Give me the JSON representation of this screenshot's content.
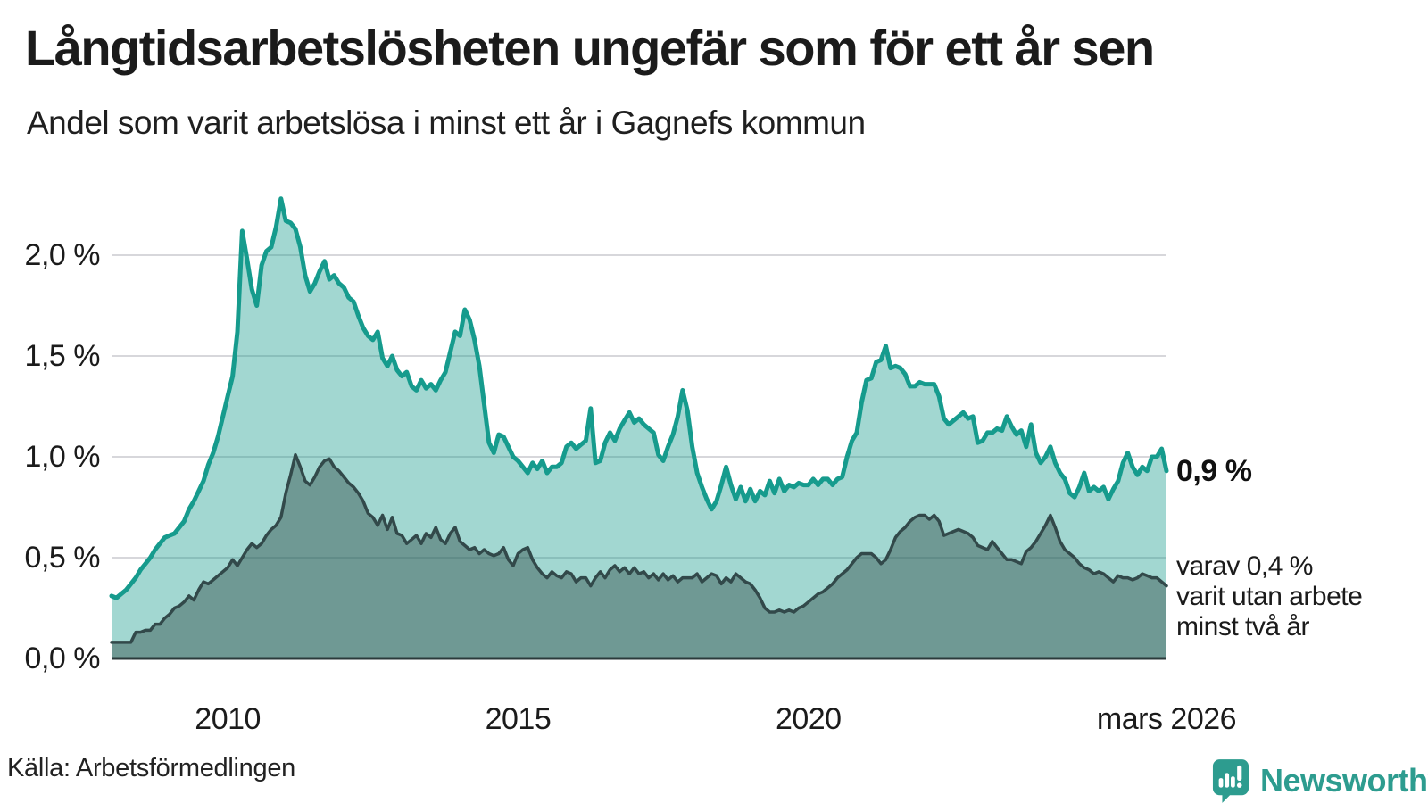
{
  "title": "Långtidsarbetslösheten ungefär som för ett år sen",
  "subtitle": "Andel som varit arbetslösa i minst ett år i Gagnefs kommun",
  "source": "Källa: Arbetsförmedlingen",
  "logo": {
    "text": "Newsworthy",
    "color": "#2d9c8f"
  },
  "annotations": {
    "latest_total": "0,9 %",
    "latest_two_year_line1": "varav 0,4 %",
    "latest_two_year_line2": "varit utan arbete",
    "latest_two_year_line3": "minst två år"
  },
  "chart_data": {
    "type": "area",
    "x_start": "2008-01",
    "x_end": "2026-03",
    "x_unit": "month",
    "ylim": [
      0,
      2.35
    ],
    "grid": true,
    "gridline_values": [
      0.5,
      1.0,
      1.5,
      2.0
    ],
    "y_axis": {
      "labels": [
        "2,0 %",
        "1,5 %",
        "1,0 %",
        "0,5 %",
        "0,0 %"
      ],
      "values": [
        2.0,
        1.5,
        1.0,
        0.5,
        0.0
      ]
    },
    "x_ticks": [
      {
        "label": "2010",
        "month_index": 24
      },
      {
        "label": "2015",
        "month_index": 84
      },
      {
        "label": "2020",
        "month_index": 144
      },
      {
        "label": "mars 2026",
        "month_index": 218
      }
    ],
    "colors": {
      "total_line": "#169b8d",
      "total_fill": "#169b8d",
      "two_year_line": "#32494a",
      "two_year_fill": "#2e4a47",
      "gridline": "#d7d7db",
      "baseline": "#2b3a3b"
    },
    "series": [
      {
        "name": "Arbetslösa minst ett år (andel, %)",
        "values": [
          0.31,
          0.3,
          0.32,
          0.34,
          0.37,
          0.4,
          0.44,
          0.47,
          0.5,
          0.54,
          0.57,
          0.6,
          0.61,
          0.62,
          0.65,
          0.68,
          0.74,
          0.78,
          0.83,
          0.88,
          0.96,
          1.02,
          1.1,
          1.2,
          1.3,
          1.4,
          1.62,
          2.12,
          1.98,
          1.83,
          1.75,
          1.95,
          2.02,
          2.04,
          2.14,
          2.28,
          2.17,
          2.16,
          2.13,
          2.04,
          1.9,
          1.82,
          1.86,
          1.92,
          1.97,
          1.88,
          1.9,
          1.86,
          1.84,
          1.79,
          1.77,
          1.7,
          1.64,
          1.6,
          1.58,
          1.62,
          1.49,
          1.45,
          1.5,
          1.43,
          1.4,
          1.42,
          1.35,
          1.33,
          1.38,
          1.34,
          1.36,
          1.33,
          1.38,
          1.42,
          1.52,
          1.62,
          1.6,
          1.73,
          1.68,
          1.58,
          1.45,
          1.26,
          1.07,
          1.02,
          1.11,
          1.1,
          1.05,
          1.0,
          0.98,
          0.95,
          0.92,
          0.97,
          0.94,
          0.98,
          0.92,
          0.95,
          0.95,
          0.97,
          1.05,
          1.07,
          1.04,
          1.06,
          1.08,
          1.24,
          0.97,
          0.98,
          1.07,
          1.12,
          1.08,
          1.14,
          1.18,
          1.22,
          1.17,
          1.19,
          1.16,
          1.14,
          1.12,
          1.01,
          0.98,
          1.05,
          1.11,
          1.2,
          1.33,
          1.23,
          1.05,
          0.92,
          0.85,
          0.79,
          0.74,
          0.78,
          0.86,
          0.95,
          0.86,
          0.79,
          0.85,
          0.78,
          0.84,
          0.78,
          0.83,
          0.81,
          0.88,
          0.82,
          0.89,
          0.83,
          0.86,
          0.85,
          0.87,
          0.86,
          0.86,
          0.89,
          0.86,
          0.89,
          0.89,
          0.86,
          0.89,
          0.9,
          1.0,
          1.08,
          1.12,
          1.27,
          1.38,
          1.39,
          1.47,
          1.48,
          1.55,
          1.44,
          1.45,
          1.44,
          1.41,
          1.35,
          1.35,
          1.37,
          1.36,
          1.36,
          1.36,
          1.3,
          1.19,
          1.16,
          1.18,
          1.2,
          1.22,
          1.19,
          1.2,
          1.07,
          1.08,
          1.12,
          1.12,
          1.14,
          1.13,
          1.2,
          1.15,
          1.11,
          1.13,
          1.05,
          1.16,
          1.02,
          0.97,
          1.0,
          1.05,
          0.97,
          0.92,
          0.89,
          0.82,
          0.8,
          0.85,
          0.92,
          0.83,
          0.85,
          0.83,
          0.85,
          0.79,
          0.84,
          0.88,
          0.97,
          1.02,
          0.95,
          0.91,
          0.95,
          0.93,
          1.0,
          1.0,
          1.04,
          0.93
        ]
      },
      {
        "name": "Varav utan arbete minst två år (andel, %)",
        "values": [
          0.08,
          0.08,
          0.08,
          0.08,
          0.08,
          0.13,
          0.13,
          0.14,
          0.14,
          0.17,
          0.17,
          0.2,
          0.22,
          0.25,
          0.26,
          0.28,
          0.31,
          0.29,
          0.34,
          0.38,
          0.37,
          0.39,
          0.41,
          0.43,
          0.45,
          0.49,
          0.46,
          0.5,
          0.54,
          0.57,
          0.55,
          0.57,
          0.61,
          0.64,
          0.66,
          0.7,
          0.82,
          0.91,
          1.01,
          0.95,
          0.88,
          0.86,
          0.9,
          0.95,
          0.98,
          0.99,
          0.95,
          0.93,
          0.9,
          0.87,
          0.85,
          0.82,
          0.78,
          0.72,
          0.7,
          0.66,
          0.71,
          0.64,
          0.7,
          0.62,
          0.61,
          0.57,
          0.59,
          0.61,
          0.57,
          0.62,
          0.6,
          0.65,
          0.59,
          0.57,
          0.62,
          0.65,
          0.58,
          0.56,
          0.54,
          0.55,
          0.52,
          0.54,
          0.52,
          0.51,
          0.52,
          0.55,
          0.49,
          0.46,
          0.52,
          0.54,
          0.55,
          0.49,
          0.45,
          0.42,
          0.4,
          0.43,
          0.41,
          0.4,
          0.43,
          0.42,
          0.38,
          0.4,
          0.4,
          0.36,
          0.4,
          0.43,
          0.4,
          0.44,
          0.46,
          0.43,
          0.45,
          0.42,
          0.45,
          0.42,
          0.43,
          0.4,
          0.42,
          0.39,
          0.42,
          0.39,
          0.41,
          0.38,
          0.4,
          0.4,
          0.4,
          0.42,
          0.38,
          0.4,
          0.42,
          0.41,
          0.37,
          0.4,
          0.38,
          0.42,
          0.4,
          0.38,
          0.37,
          0.34,
          0.3,
          0.25,
          0.23,
          0.23,
          0.24,
          0.23,
          0.24,
          0.23,
          0.25,
          0.26,
          0.28,
          0.3,
          0.32,
          0.33,
          0.35,
          0.37,
          0.4,
          0.42,
          0.44,
          0.47,
          0.5,
          0.52,
          0.52,
          0.52,
          0.5,
          0.47,
          0.49,
          0.54,
          0.6,
          0.63,
          0.65,
          0.68,
          0.7,
          0.71,
          0.71,
          0.69,
          0.71,
          0.68,
          0.61,
          0.62,
          0.63,
          0.64,
          0.63,
          0.62,
          0.6,
          0.56,
          0.55,
          0.54,
          0.58,
          0.55,
          0.52,
          0.49,
          0.49,
          0.48,
          0.47,
          0.53,
          0.55,
          0.58,
          0.62,
          0.66,
          0.71,
          0.65,
          0.58,
          0.54,
          0.52,
          0.5,
          0.47,
          0.45,
          0.44,
          0.42,
          0.43,
          0.42,
          0.4,
          0.38,
          0.41,
          0.4,
          0.4,
          0.39,
          0.4,
          0.42,
          0.41,
          0.4,
          0.4,
          0.38,
          0.36
        ]
      }
    ]
  }
}
